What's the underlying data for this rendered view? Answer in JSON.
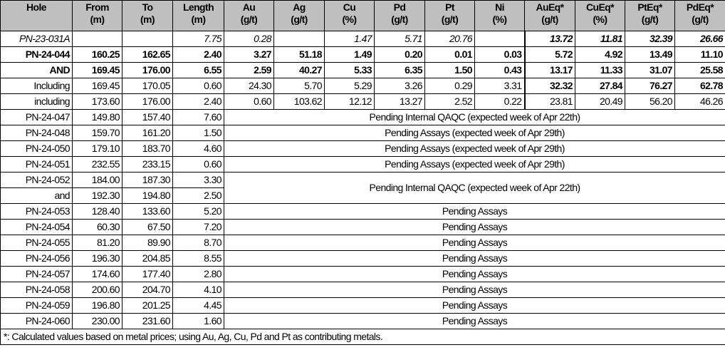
{
  "headers": [
    {
      "line1": "Hole",
      "line2": ""
    },
    {
      "line1": "From",
      "line2": "(m)"
    },
    {
      "line1": "To",
      "line2": "(m)"
    },
    {
      "line1": "Length",
      "line2": "(m)"
    },
    {
      "line1": "Au",
      "line2": "(g/t)"
    },
    {
      "line1": "Ag",
      "line2": "(g/t)"
    },
    {
      "line1": "Cu",
      "line2": "(%)"
    },
    {
      "line1": "Pd",
      "line2": "(g/t)"
    },
    {
      "line1": "Pt",
      "line2": "(g/t)"
    },
    {
      "line1": "Ni",
      "line2": "(%)"
    },
    {
      "line1": "AuEq*",
      "line2": "(g/t)"
    },
    {
      "line1": "CuEq*",
      "line2": "(%)"
    },
    {
      "line1": "PtEq*",
      "line2": "(g/t)"
    },
    {
      "line1": "PdEq*",
      "line2": "(g/t)"
    }
  ],
  "assay_rows": [
    {
      "hole": "PN-23-031A",
      "from": "",
      "to": "",
      "length": "7.75",
      "au": "0.28",
      "ag": "",
      "cu": "1.47",
      "pd": "5.71",
      "pt": "20.76",
      "ni": "",
      "aueq": "13.72",
      "cueq": "11.81",
      "pteq": "32.39",
      "pdeq": "26.66"
    },
    {
      "hole": "PN-24-044",
      "from": "160.25",
      "to": "162.65",
      "length": "2.40",
      "au": "3.27",
      "ag": "51.18",
      "cu": "1.49",
      "pd": "0.20",
      "pt": "0.01",
      "ni": "0.03",
      "aueq": "5.72",
      "cueq": "4.92",
      "pteq": "13.49",
      "pdeq": "11.10"
    },
    {
      "hole": "AND",
      "from": "169.45",
      "to": "176.00",
      "length": "6.55",
      "au": "2.59",
      "ag": "40.27",
      "cu": "5.33",
      "pd": "6.35",
      "pt": "1.50",
      "ni": "0.43",
      "aueq": "13.17",
      "cueq": "11.33",
      "pteq": "31.07",
      "pdeq": "25.58"
    },
    {
      "hole": "Including",
      "from": "169.45",
      "to": "170.05",
      "length": "0.60",
      "au": "24.30",
      "ag": "5.70",
      "cu": "5.29",
      "pd": "3.26",
      "pt": "0.29",
      "ni": "3.31",
      "aueq": "32.32",
      "cueq": "27.84",
      "pteq": "76.27",
      "pdeq": "62.78"
    },
    {
      "hole": "including",
      "from": "173.60",
      "to": "176.00",
      "length": "2.40",
      "au": "0.60",
      "ag": "103.62",
      "cu": "12.12",
      "pd": "13.27",
      "pt": "2.52",
      "ni": "0.22",
      "aueq": "23.81",
      "cueq": "20.49",
      "pteq": "56.20",
      "pdeq": "46.26"
    }
  ],
  "pending_rows": [
    {
      "hole": "PN-24-047",
      "from": "149.80",
      "to": "157.40",
      "length": "7.60",
      "status": "Pending Internal QAQC (expected week of Apr 22th)"
    },
    {
      "hole": "PN-24-048",
      "from": "159.70",
      "to": "161.20",
      "length": "1.50",
      "status": "Pending Assays (expected week of Apr 29th)"
    },
    {
      "hole": "PN-24-050",
      "from": "179.10",
      "to": "183.70",
      "length": "4.60",
      "status": "Pending Assays (expected week of Apr 29th)"
    },
    {
      "hole": "PN-24-051",
      "from": "232.55",
      "to": "233.15",
      "length": "0.60",
      "status": "Pending Assays (expected week of Apr 29th)"
    },
    {
      "hole": "PN-24-052",
      "from": "184.00",
      "to": "187.30",
      "length": "3.30",
      "status": "Pending Internal QAQC (expected week of Apr 22th)"
    },
    {
      "hole": "and",
      "from": "192.30",
      "to": "194.80",
      "length": "2.50",
      "status": ""
    },
    {
      "hole": "PN-24-053",
      "from": "128.40",
      "to": "133.60",
      "length": "5.20",
      "status": "Pending Assays"
    },
    {
      "hole": "PN-24-054",
      "from": "60.30",
      "to": "67.50",
      "length": "7.20",
      "status": "Pending Assays"
    },
    {
      "hole": "PN-24-055",
      "from": "81.20",
      "to": "89.90",
      "length": "8.70",
      "status": "Pending Assays"
    },
    {
      "hole": "PN-24-056",
      "from": "196.30",
      "to": "204.85",
      "length": "8.55",
      "status": "Pending Assays"
    },
    {
      "hole": "PN-24-057",
      "from": "174.60",
      "to": "177.40",
      "length": "2.80",
      "status": "Pending Assays"
    },
    {
      "hole": "PN-24-058",
      "from": "200.60",
      "to": "204.70",
      "length": "4.10",
      "status": "Pending Assays"
    },
    {
      "hole": "PN-24-059",
      "from": "196.80",
      "to": "201.25",
      "length": "4.45",
      "status": "Pending Assays"
    },
    {
      "hole": "PN-24-060",
      "from": "230.00",
      "to": "231.60",
      "length": "1.60",
      "status": "Pending Assays"
    }
  ],
  "footnote": "*: Calculated values based on metal prices; using Au, Ag, Cu, Pd and Pt as contributing metals."
}
